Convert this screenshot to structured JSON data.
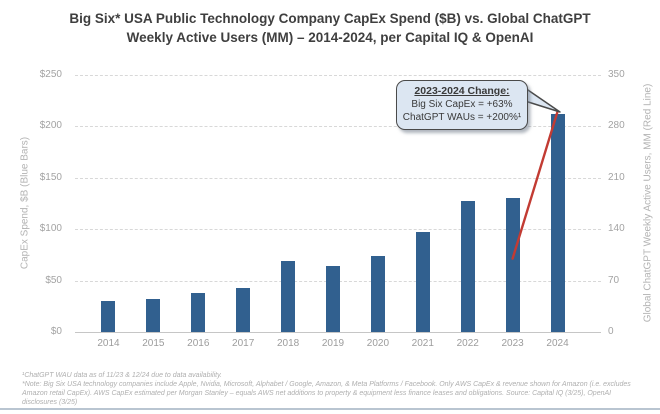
{
  "title": {
    "line1": "Big Six* USA Public Technology Company CapEx Spend ($B) vs. Global ChatGPT",
    "line2": "Weekly Active Users (MM) – 2014-2024, per Capital IQ & OpenAI"
  },
  "chart_data": {
    "type": "bar",
    "title": "Big Six USA Public Technology Company CapEx Spend ($B) vs. Global ChatGPT Weekly Active Users (MM), 2014-2024",
    "categories": [
      "2014",
      "2015",
      "2016",
      "2017",
      "2018",
      "2019",
      "2020",
      "2021",
      "2022",
      "2023",
      "2024"
    ],
    "series": [
      {
        "name": "Big Six CapEx Spend, $B",
        "type": "bar",
        "axis": "left",
        "values": [
          30,
          32,
          38,
          43,
          69,
          64,
          74,
          97,
          127,
          130,
          212
        ]
      },
      {
        "name": "Global ChatGPT Weekly Active Users, MM",
        "type": "line",
        "axis": "right",
        "x": [
          "2023",
          "2024"
        ],
        "values": [
          100,
          300
        ]
      }
    ],
    "left_axis": {
      "label": "CapEx Spend, $B (Blue Bars)",
      "ticks": [
        "$250",
        "$200",
        "$150",
        "$100",
        "$50",
        "$0"
      ],
      "range": [
        0,
        250
      ]
    },
    "right_axis": {
      "label": "Global ChatGPT Weekly Active Users, MM (Red Line)",
      "ticks": [
        "350",
        "280",
        "210",
        "140",
        "70",
        "0"
      ],
      "range": [
        0,
        350
      ]
    },
    "grid": "horizontal dashed",
    "legend": "none"
  },
  "callout": {
    "heading": "2023-2024 Change:",
    "line1": "Big Six CapEx = +63%",
    "line2": "ChatGPT WAUs = +200%¹"
  },
  "footnotes": {
    "line1": "¹ChatGPT WAU data as of 11/23 & 12/24 due to data availability.",
    "line2": "*Note: Big Six USA technology companies include Apple, Nvidia, Microsoft, Alphabet / Google, Amazon, & Meta Platforms / Facebook. Only AWS CapEx & revenue shown for Amazon (i.e. excludes Amazon retail CapEx). AWS CapEx estimated per Morgan Stanley – equals AWS net additions to property & equipment less finance leases and obligations. Source: Capital IQ (3/25), OpenAI disclosures (3/25)"
  },
  "colors": {
    "bar_blue": "#31608f",
    "line_red": "#c23b33",
    "callout_fill": "#dce6f2",
    "callout_border": "#4a4a4a",
    "grid_gray": "#d8d8d8",
    "baseline_gray": "#c6c6c6",
    "title_gray": "#3f3f3f",
    "tick_gray": "#a3a3a3"
  }
}
